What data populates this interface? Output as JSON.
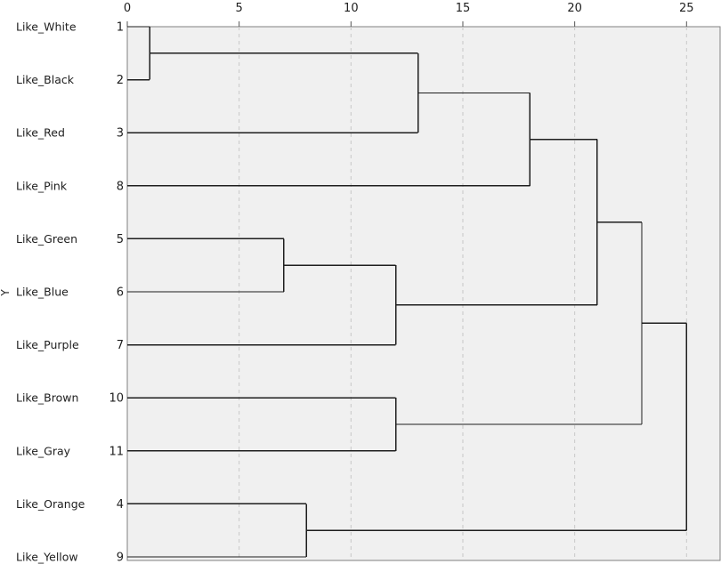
{
  "chart_data": {
    "type": "dendrogram",
    "title": "",
    "ylabel": "Y",
    "xlim": [
      0,
      26.5
    ],
    "xticks": [
      0,
      5,
      10,
      15,
      20,
      25
    ],
    "grid": "vertical dashed",
    "colors": {
      "background": "#f0f0f0",
      "line": "#1e1e1e",
      "grid": "#c8c8c8"
    },
    "leaves": [
      {
        "label": "Like_White",
        "number": "1"
      },
      {
        "label": "Like_Black",
        "number": "2"
      },
      {
        "label": "Like_Red",
        "number": "3"
      },
      {
        "label": "Like_Pink",
        "number": "8"
      },
      {
        "label": "Like_Green",
        "number": "5"
      },
      {
        "label": "Like_Blue",
        "number": "6"
      },
      {
        "label": "Like_Purple",
        "number": "7"
      },
      {
        "label": "Like_Brown",
        "number": "10"
      },
      {
        "label": "Like_Gray",
        "number": "11"
      },
      {
        "label": "Like_Orange",
        "number": "4"
      },
      {
        "label": "Like_Yellow",
        "number": "9"
      }
    ],
    "merges": [
      {
        "id": "c1",
        "left": 0,
        "right": 1,
        "height": 1
      },
      {
        "id": "c2",
        "left": 9,
        "right": 10,
        "height": 8
      },
      {
        "id": "c3",
        "left": 4,
        "right": 5,
        "height": 7
      },
      {
        "id": "c4",
        "left": "c3",
        "right": 6,
        "height": 12
      },
      {
        "id": "c5",
        "left": 7,
        "right": 8,
        "height": 12
      },
      {
        "id": "c6",
        "left": "c1",
        "right": 2,
        "height": 13
      },
      {
        "id": "c7",
        "left": "c6",
        "right": 3,
        "height": 18
      },
      {
        "id": "c8",
        "left": "c7",
        "right": "c4",
        "height": 21
      },
      {
        "id": "c9",
        "left": "c8",
        "right": "c5",
        "height": 23
      },
      {
        "id": "c10",
        "left": "c9",
        "right": "c2",
        "height": 25
      }
    ]
  }
}
